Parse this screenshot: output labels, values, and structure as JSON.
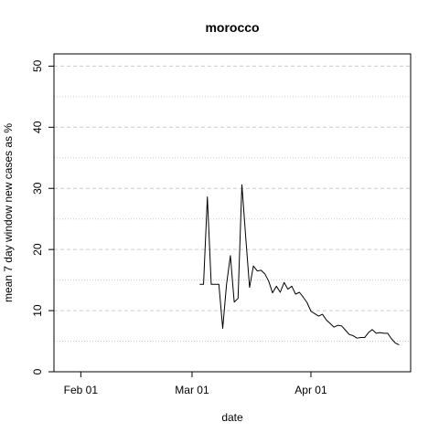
{
  "chart_data": {
    "type": "line",
    "title": "morocco",
    "xlabel": "date",
    "ylabel": "mean  7  day window new cases as %",
    "x_ticks": [
      "2020-02-01",
      "2020-03-01",
      "2020-04-01"
    ],
    "x_tick_labels": [
      "Feb 01",
      "Mar 01",
      "Apr 01"
    ],
    "y_ticks": [
      0,
      10,
      20,
      30,
      40,
      50
    ],
    "y_tick_labels": [
      "0",
      "10",
      "20",
      "30",
      "40",
      "50"
    ],
    "xlim": [
      "2020-01-25",
      "2020-04-27"
    ],
    "ylim": [
      0,
      52
    ],
    "grid": "horizontal-dashed",
    "line_color": "#000000",
    "grid_color": "#cccccc",
    "series": [
      {
        "x": [
          "2020-03-03",
          "2020-03-04",
          "2020-03-05",
          "2020-03-06",
          "2020-03-07",
          "2020-03-08",
          "2020-03-09",
          "2020-03-10",
          "2020-03-11",
          "2020-03-12",
          "2020-03-13",
          "2020-03-14",
          "2020-03-15",
          "2020-03-16",
          "2020-03-17",
          "2020-03-18",
          "2020-03-19",
          "2020-03-20",
          "2020-03-21",
          "2020-03-22",
          "2020-03-23",
          "2020-03-24",
          "2020-03-25",
          "2020-03-26",
          "2020-03-27",
          "2020-03-28",
          "2020-03-29",
          "2020-03-30",
          "2020-03-31",
          "2020-04-01",
          "2020-04-02",
          "2020-04-03",
          "2020-04-04",
          "2020-04-05",
          "2020-04-06",
          "2020-04-07",
          "2020-04-08",
          "2020-04-09",
          "2020-04-10",
          "2020-04-11",
          "2020-04-12",
          "2020-04-13",
          "2020-04-14",
          "2020-04-15",
          "2020-04-16",
          "2020-04-17",
          "2020-04-18",
          "2020-04-19",
          "2020-04-20",
          "2020-04-21",
          "2020-04-22",
          "2020-04-23",
          "2020-04-24"
        ],
        "values": [
          14.3,
          14.3,
          28.6,
          14.3,
          14.3,
          14.3,
          7.1,
          14.3,
          19.0,
          11.4,
          12.0,
          30.6,
          22.0,
          13.8,
          17.3,
          16.5,
          16.6,
          16.0,
          14.8,
          12.9,
          14.0,
          13.0,
          14.6,
          13.5,
          14.0,
          12.7,
          13.0,
          12.2,
          11.3,
          9.9,
          9.5,
          9.1,
          9.4,
          8.5,
          7.9,
          7.3,
          7.6,
          7.5,
          6.8,
          6.1,
          5.9,
          5.5,
          5.6,
          5.6,
          6.4,
          6.9,
          6.3,
          6.4,
          6.3,
          6.3,
          5.4,
          4.7,
          4.4
        ]
      }
    ]
  }
}
